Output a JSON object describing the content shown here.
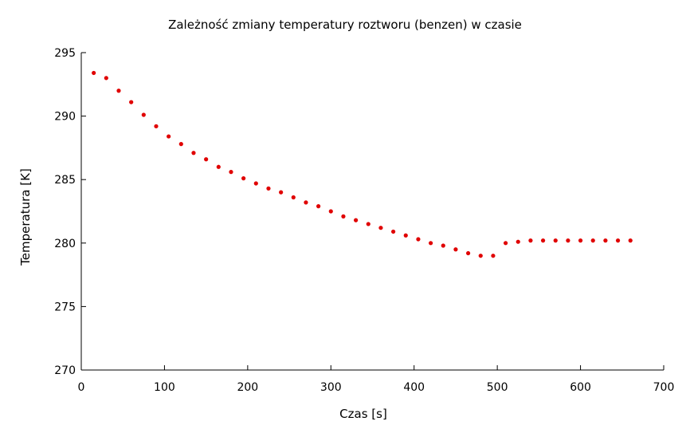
{
  "chart_data": {
    "type": "scatter",
    "title": "Zależność zmiany temperatury roztworu (benzen) w czasie",
    "xlabel": "Czas [s]",
    "ylabel": "Temperatura [K]",
    "xlim": [
      0,
      700
    ],
    "ylim": [
      270,
      295
    ],
    "xticks": [
      0,
      100,
      200,
      300,
      400,
      500,
      600,
      700
    ],
    "yticks": [
      270,
      275,
      280,
      285,
      290,
      295
    ],
    "grid": false,
    "legend": false,
    "marker_color": "#e00000",
    "series": [
      {
        "x": [
          15,
          30,
          45,
          60,
          75,
          90,
          105,
          120,
          135,
          150,
          165,
          180,
          195,
          210,
          225,
          240,
          255,
          270,
          285,
          300,
          315,
          330,
          345,
          360,
          375,
          390,
          405,
          420,
          435,
          450,
          465,
          480,
          495,
          510,
          525,
          540,
          555,
          570,
          585,
          600,
          615,
          630,
          645,
          660
        ],
        "y": [
          293.4,
          293.0,
          292.0,
          291.1,
          290.1,
          289.2,
          288.4,
          287.8,
          287.1,
          286.6,
          286.0,
          285.6,
          285.1,
          284.7,
          284.3,
          284.0,
          283.6,
          283.2,
          282.9,
          282.5,
          282.1,
          281.8,
          281.5,
          281.2,
          280.9,
          280.6,
          280.3,
          280.0,
          279.8,
          279.5,
          279.2,
          279.0,
          279.0,
          280.0,
          280.1,
          280.2,
          280.2,
          280.2,
          280.2,
          280.2,
          280.2,
          280.2,
          280.2,
          280.2
        ]
      }
    ]
  }
}
